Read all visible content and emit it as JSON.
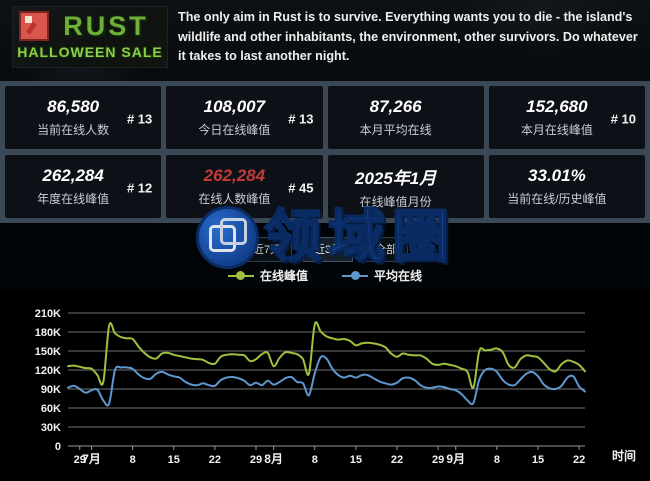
{
  "banner": {
    "logo_title": "RUST",
    "logo_subtitle": "HALLOWEEN SALE",
    "description": "The only aim in Rust is to survive. Everything wants you to die - the island's wildlife and other inhabitants, the environment, other survivors. Do whatever it takes to last another night."
  },
  "stats": [
    {
      "value": "86,580",
      "label": "当前在线人数",
      "rank": "# 13",
      "value_color": "#ffffff"
    },
    {
      "value": "108,007",
      "label": "今日在线峰值",
      "rank": "# 13",
      "value_color": "#ffffff"
    },
    {
      "value": "87,266",
      "label": "本月平均在线",
      "rank": "",
      "value_color": "#ffffff"
    },
    {
      "value": "152,680",
      "label": "本月在线峰值",
      "rank": "# 10",
      "value_color": "#ffffff"
    },
    {
      "value": "262,284",
      "label": "年度在线峰值",
      "rank": "# 12",
      "value_color": "#ffffff"
    },
    {
      "value": "262,284",
      "label": "在线人数峰值",
      "rank": "# 45",
      "value_color": "#c43a3a"
    },
    {
      "value": "2025年1月",
      "label": "在线峰值月份",
      "rank": "",
      "value_color": "#ffffff"
    },
    {
      "value": "33.01%",
      "label": "当前在线/历史峰值",
      "rank": "",
      "value_color": "#ffffff"
    }
  ],
  "tabs": [
    {
      "label": "近7天"
    },
    {
      "label": "近3月"
    },
    {
      "label": "全部"
    }
  ],
  "legend": [
    {
      "label": "在线峰值",
      "color": "#9fc13f"
    },
    {
      "label": "平均在线",
      "color": "#5f97cf"
    }
  ],
  "watermark": {
    "text": "领域圈"
  },
  "chart_data": {
    "type": "line",
    "title": "",
    "xlabel": "时间",
    "ylabel": "",
    "values_unit": "thousands of players (K)",
    "x_unit": "day, 2025-06-27 through 2025-09-23",
    "ylim": [
      0,
      210
    ],
    "grid": true,
    "legend_position": "top-center",
    "y_ticks": [
      "0",
      "30K",
      "60K",
      "90K",
      "120K",
      "150K",
      "180K",
      "210K"
    ],
    "x_ticks": [
      {
        "i": 2,
        "label": "29"
      },
      {
        "i": 4,
        "label": "7月",
        "bold": true
      },
      {
        "i": 11,
        "label": "8"
      },
      {
        "i": 18,
        "label": "15"
      },
      {
        "i": 25,
        "label": "22"
      },
      {
        "i": 32,
        "label": "29"
      },
      {
        "i": 35,
        "label": "8月",
        "bold": true
      },
      {
        "i": 42,
        "label": "8"
      },
      {
        "i": 49,
        "label": "15"
      },
      {
        "i": 56,
        "label": "22"
      },
      {
        "i": 63,
        "label": "29"
      },
      {
        "i": 66,
        "label": "9月",
        "bold": true
      },
      {
        "i": 73,
        "label": "8"
      },
      {
        "i": 80,
        "label": "15"
      },
      {
        "i": 87,
        "label": "22"
      }
    ],
    "series": [
      {
        "name": "在线峰值",
        "color": "#9fc13f",
        "values": [
          126,
          127,
          125,
          123,
          122,
          112,
          101,
          190,
          178,
          172,
          170,
          169,
          157,
          147,
          140,
          138,
          146,
          147,
          144,
          142,
          140,
          138,
          137,
          136,
          131,
          130,
          141,
          144,
          145,
          144,
          143,
          134,
          137,
          145,
          147,
          126,
          139,
          148,
          147,
          145,
          137,
          114,
          192,
          181,
          173,
          170,
          168,
          169,
          166,
          159,
          162,
          163,
          162,
          160,
          156,
          146,
          141,
          146,
          144,
          143,
          143,
          138,
          130,
          128,
          130,
          128,
          126,
          122,
          117,
          92,
          150,
          151,
          152,
          154,
          148,
          128,
          124,
          137,
          143,
          142,
          140,
          131,
          121,
          118,
          129,
          135,
          133,
          128,
          118
        ]
      },
      {
        "name": "平均在线",
        "color": "#5f97cf",
        "values": [
          92,
          95,
          90,
          84,
          88,
          89,
          72,
          67,
          120,
          124,
          124,
          122,
          113,
          107,
          106,
          114,
          117,
          113,
          110,
          108,
          101,
          97,
          96,
          99,
          96,
          95,
          104,
          108,
          109,
          107,
          103,
          96,
          100,
          96,
          103,
          97,
          101,
          107,
          109,
          101,
          99,
          80,
          115,
          140,
          138,
          122,
          112,
          108,
          111,
          108,
          112,
          112,
          107,
          102,
          99,
          97,
          100,
          107,
          108,
          104,
          96,
          92,
          92,
          94,
          93,
          90,
          88,
          82,
          72,
          68,
          105,
          120,
          122,
          117,
          104,
          97,
          96,
          105,
          114,
          117,
          110,
          97,
          91,
          90,
          95,
          108,
          110,
          94,
          86
        ]
      }
    ]
  }
}
